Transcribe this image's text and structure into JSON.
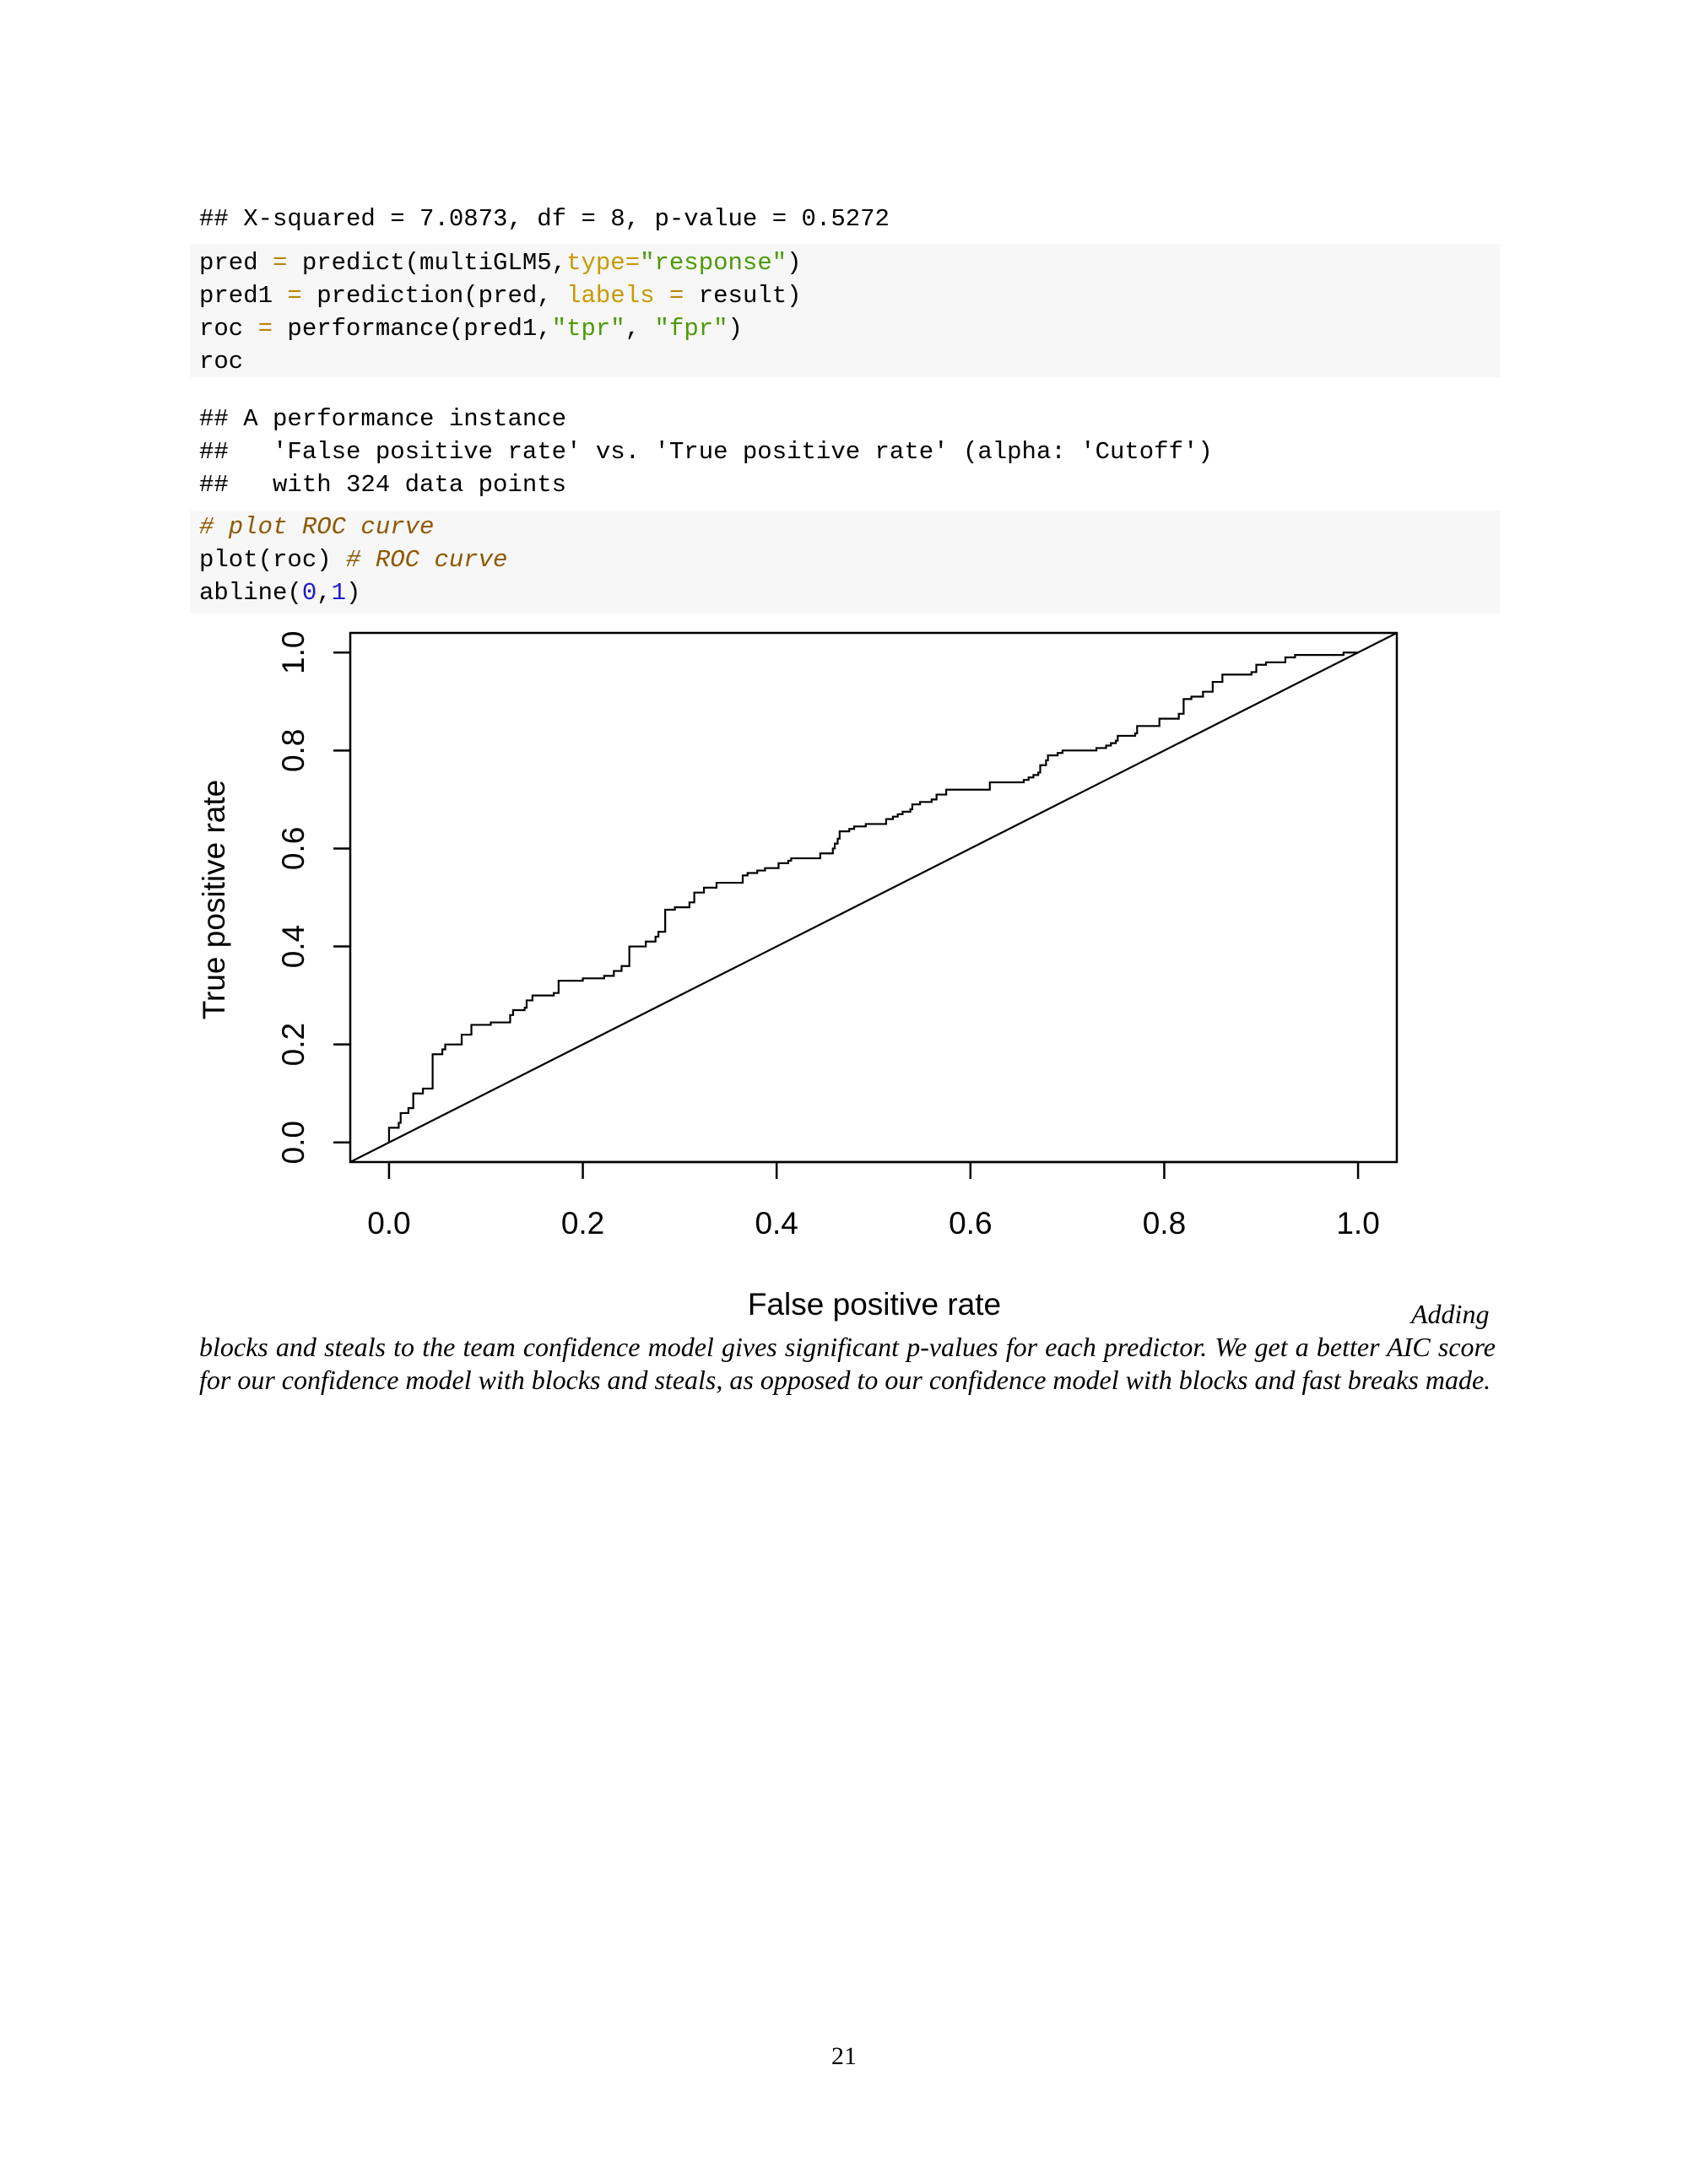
{
  "output1": {
    "line": "## X-squared = 7.0873, df = 8, p-value = 0.5272"
  },
  "code1": {
    "l1": {
      "a": "pred ",
      "op": "=",
      "b": " predict(multiGLM5,",
      "arg": "type=",
      "str": "\"response\"",
      "c": ")"
    },
    "l2": {
      "a": "pred1 ",
      "op": "=",
      "b": " prediction(pred, ",
      "arg": "labels ",
      "op2": "=",
      "c": " result)"
    },
    "l3": {
      "a": "roc ",
      "op": "=",
      "b": " performance(pred1,",
      "s1": "\"tpr\"",
      "c": ", ",
      "s2": "\"fpr\"",
      "d": ")"
    },
    "l4": "roc"
  },
  "output2": {
    "l1": "## A performance instance",
    "l2": "##   'False positive rate' vs. 'True positive rate' (alpha: 'Cutoff')",
    "l3": "##   with 324 data points"
  },
  "code2": {
    "l1": "# plot ROC curve",
    "l2a": "plot(roc) ",
    "l2b": "# ROC curve",
    "l3a": "abline(",
    "l3n1": "0",
    "l3c": ",",
    "l3n2": "1",
    "l3d": ")"
  },
  "chart_data": {
    "type": "line",
    "title": "",
    "xlabel": "False positive rate",
    "ylabel": "True positive rate",
    "xlim": [
      -0.04,
      1.04
    ],
    "ylim": [
      -0.04,
      1.04
    ],
    "xticks": [
      "0.0",
      "0.2",
      "0.4",
      "0.6",
      "0.8",
      "1.0"
    ],
    "yticks": [
      "0.0",
      "0.2",
      "0.4",
      "0.6",
      "0.8",
      "1.0"
    ],
    "grid": false,
    "series": [
      {
        "style": "step",
        "points": [
          [
            0,
            0
          ],
          [
            0,
            0.03
          ],
          [
            0.01,
            0.04
          ],
          [
            0.012,
            0.06
          ],
          [
            0.02,
            0.07
          ],
          [
            0.025,
            0.1
          ],
          [
            0.035,
            0.11
          ],
          [
            0.045,
            0.12
          ],
          [
            0.045,
            0.18
          ],
          [
            0.055,
            0.19
          ],
          [
            0.058,
            0.2
          ],
          [
            0.075,
            0.2
          ],
          [
            0.075,
            0.22
          ],
          [
            0.085,
            0.225
          ],
          [
            0.085,
            0.24
          ],
          [
            0.105,
            0.24
          ],
          [
            0.105,
            0.245
          ],
          [
            0.12,
            0.245
          ],
          [
            0.125,
            0.25
          ],
          [
            0.125,
            0.26
          ],
          [
            0.128,
            0.27
          ],
          [
            0.14,
            0.275
          ],
          [
            0.142,
            0.29
          ],
          [
            0.148,
            0.3
          ],
          [
            0.165,
            0.3
          ],
          [
            0.17,
            0.305
          ],
          [
            0.175,
            0.31
          ],
          [
            0.175,
            0.33
          ],
          [
            0.2,
            0.33
          ],
          [
            0.2,
            0.335
          ],
          [
            0.22,
            0.335
          ],
          [
            0.222,
            0.34
          ],
          [
            0.232,
            0.35
          ],
          [
            0.24,
            0.36
          ],
          [
            0.248,
            0.365
          ],
          [
            0.248,
            0.4
          ],
          [
            0.265,
            0.4
          ],
          [
            0.265,
            0.41
          ],
          [
            0.275,
            0.42
          ],
          [
            0.278,
            0.43
          ],
          [
            0.285,
            0.435
          ],
          [
            0.285,
            0.475
          ],
          [
            0.295,
            0.48
          ],
          [
            0.31,
            0.48
          ],
          [
            0.31,
            0.49
          ],
          [
            0.315,
            0.5
          ],
          [
            0.315,
            0.51
          ],
          [
            0.325,
            0.51
          ],
          [
            0.325,
            0.52
          ],
          [
            0.335,
            0.52
          ],
          [
            0.338,
            0.53
          ],
          [
            0.365,
            0.53
          ],
          [
            0.365,
            0.545
          ],
          [
            0.37,
            0.55
          ],
          [
            0.38,
            0.555
          ],
          [
            0.388,
            0.56
          ],
          [
            0.4,
            0.56
          ],
          [
            0.402,
            0.57
          ],
          [
            0.41,
            0.57
          ],
          [
            0.412,
            0.575
          ],
          [
            0.415,
            0.58
          ],
          [
            0.44,
            0.58
          ],
          [
            0.445,
            0.59
          ],
          [
            0.455,
            0.59
          ],
          [
            0.458,
            0.6
          ],
          [
            0.46,
            0.61
          ],
          [
            0.463,
            0.62
          ],
          [
            0.465,
            0.635
          ],
          [
            0.475,
            0.64
          ],
          [
            0.48,
            0.645
          ],
          [
            0.49,
            0.645
          ],
          [
            0.492,
            0.65
          ],
          [
            0.51,
            0.65
          ],
          [
            0.513,
            0.66
          ],
          [
            0.52,
            0.665
          ],
          [
            0.525,
            0.67
          ],
          [
            0.53,
            0.675
          ],
          [
            0.538,
            0.68
          ],
          [
            0.54,
            0.69
          ],
          [
            0.548,
            0.695
          ],
          [
            0.56,
            0.7
          ],
          [
            0.565,
            0.71
          ],
          [
            0.575,
            0.715
          ],
          [
            0.575,
            0.72
          ],
          [
            0.62,
            0.72
          ],
          [
            0.62,
            0.735
          ],
          [
            0.65,
            0.735
          ],
          [
            0.655,
            0.74
          ],
          [
            0.66,
            0.745
          ],
          [
            0.665,
            0.75
          ],
          [
            0.67,
            0.755
          ],
          [
            0.672,
            0.77
          ],
          [
            0.678,
            0.78
          ],
          [
            0.68,
            0.79
          ],
          [
            0.69,
            0.795
          ],
          [
            0.695,
            0.8
          ],
          [
            0.725,
            0.8
          ],
          [
            0.73,
            0.805
          ],
          [
            0.74,
            0.81
          ],
          [
            0.745,
            0.815
          ],
          [
            0.75,
            0.82
          ],
          [
            0.752,
            0.83
          ],
          [
            0.77,
            0.835
          ],
          [
            0.772,
            0.84
          ],
          [
            0.772,
            0.85
          ],
          [
            0.795,
            0.85
          ],
          [
            0.795,
            0.865
          ],
          [
            0.815,
            0.865
          ],
          [
            0.815,
            0.875
          ],
          [
            0.82,
            0.89
          ],
          [
            0.82,
            0.905
          ],
          [
            0.828,
            0.91
          ],
          [
            0.84,
            0.91
          ],
          [
            0.84,
            0.92
          ],
          [
            0.85,
            0.925
          ],
          [
            0.85,
            0.94
          ],
          [
            0.86,
            0.94
          ],
          [
            0.86,
            0.955
          ],
          [
            0.885,
            0.955
          ],
          [
            0.89,
            0.96
          ],
          [
            0.895,
            0.965
          ],
          [
            0.895,
            0.975
          ],
          [
            0.905,
            0.975
          ],
          [
            0.905,
            0.98
          ],
          [
            0.925,
            0.98
          ],
          [
            0.925,
            0.99
          ],
          [
            0.935,
            0.995
          ],
          [
            0.975,
            0.995
          ],
          [
            0.98,
            0.995
          ],
          [
            0.985,
            1
          ],
          [
            1,
            1
          ]
        ]
      },
      {
        "style": "line",
        "points": [
          [
            -0.04,
            -0.04
          ],
          [
            1.04,
            1.04
          ]
        ]
      }
    ]
  },
  "caption": {
    "text": "Adding blocks and steals to the team confidence model gives significant p-values for each predictor. We get a better AIC score for our confidence model with blocks and steals, as opposed to our confidence model with blocks and fast breaks made."
  },
  "page": {
    "number": "21"
  }
}
